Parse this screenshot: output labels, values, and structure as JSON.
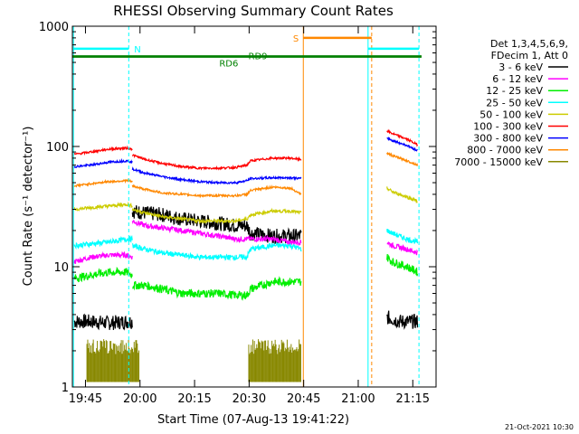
{
  "chart_data": {
    "type": "line",
    "title": "RHESSI Observing Summary Count Rates",
    "xlabel": "Start Time (07-Aug-13 19:41:22)",
    "ylabel": "Count Rate (s⁻¹ detector⁻¹)",
    "yscale": "log",
    "ylim": [
      1,
      1000
    ],
    "xlim_minutes": [
      0,
      100
    ],
    "x_unit": "minutes after 19:41:22",
    "x_tick_labels": [
      {
        "label": "19:45",
        "t": 3.6
      },
      {
        "label": "20:00",
        "t": 18.6
      },
      {
        "label": "20:15",
        "t": 33.6
      },
      {
        "label": "20:30",
        "t": 48.6
      },
      {
        "label": "20:45",
        "t": 63.6
      },
      {
        "label": "21:00",
        "t": 78.6
      },
      {
        "label": "21:15",
        "t": 93.6
      }
    ],
    "y_tick_labels": [
      {
        "label": "1",
        "v": 1
      },
      {
        "label": "10",
        "v": 10
      },
      {
        "label": "100",
        "v": 100
      },
      {
        "label": "1000",
        "v": 1000
      }
    ],
    "legend": {
      "position": "right",
      "header": [
        "Det 1,3,4,5,6,9,",
        "FDecim 1, Att 0"
      ],
      "entries": [
        {
          "label": "3 - 6 keV",
          "color": "#000000"
        },
        {
          "label": "6 - 12 keV",
          "color": "#ff00ff"
        },
        {
          "label": "12 - 25 keV",
          "color": "#00ee00"
        },
        {
          "label": "25 - 50 keV",
          "color": "#00ffff"
        },
        {
          "label": "50 - 100 keV",
          "color": "#cccc00"
        },
        {
          "label": "100 - 300 keV",
          "color": "#ff0000"
        },
        {
          "label": "300 - 800 keV",
          "color": "#0000ff"
        },
        {
          "label": "800 - 7000 keV",
          "color": "#ff8800"
        },
        {
          "label": "7000 - 15000 keV",
          "color": "#888800"
        }
      ]
    },
    "series": [
      {
        "name": "3 - 6 keV",
        "color": "#000000",
        "jitter": 0.14,
        "segments": [
          {
            "t": [
              0.5,
              5,
              10,
              15,
              16.5
            ],
            "v": [
              3.5,
              3.5,
              3.4,
              3.5,
              3.5
            ]
          },
          {
            "t": [
              16.5,
              20,
              25,
              30,
              35,
              40,
              45,
              48,
              49,
              55,
              60,
              63
            ],
            "v": [
              29,
              28,
              27,
              25,
              24,
              23,
              22,
              22,
              19,
              18,
              18,
              18
            ]
          },
          {
            "t": [
              86.5,
              90,
              95
            ],
            "v": [
              3.8,
              3.5,
              3.5
            ]
          }
        ]
      },
      {
        "name": "6 - 12 keV",
        "color": "#ff00ff",
        "jitter": 0.05,
        "segments": [
          {
            "t": [
              0.5,
              5,
              10,
              15,
              16.5
            ],
            "v": [
              11,
              12,
              12.5,
              12.5,
              12
            ]
          },
          {
            "t": [
              16.5,
              20,
              25,
              30,
              35,
              40,
              45,
              48,
              49,
              55,
              60,
              63
            ],
            "v": [
              24,
              22,
              21,
              20,
              19,
              18,
              17,
              17,
              17,
              17,
              16,
              16
            ]
          },
          {
            "t": [
              86.5,
              88,
              92,
              95
            ],
            "v": [
              16,
              15,
              14,
              13
            ]
          }
        ]
      },
      {
        "name": "12 - 25 keV",
        "color": "#00ee00",
        "jitter": 0.08,
        "segments": [
          {
            "t": [
              0.5,
              5,
              10,
              15,
              16.5
            ],
            "v": [
              8,
              8.5,
              9,
              9,
              8.5
            ]
          },
          {
            "t": [
              16.5,
              20,
              25,
              30,
              35,
              40,
              45,
              48,
              49,
              55,
              60,
              63
            ],
            "v": [
              7,
              7,
              6.5,
              6,
              6,
              6,
              5.8,
              5.8,
              6.5,
              7.5,
              7.5,
              7.5
            ]
          },
          {
            "t": [
              86.5,
              88,
              92,
              95
            ],
            "v": [
              12,
              11,
              10,
              9
            ]
          }
        ]
      },
      {
        "name": "25 - 50 keV",
        "color": "#00ffff",
        "jitter": 0.05,
        "segments": [
          {
            "t": [
              0.5,
              5,
              10,
              15,
              16.5
            ],
            "v": [
              15,
              15.5,
              16,
              17,
              17
            ]
          },
          {
            "t": [
              16.5,
              20,
              25,
              30,
              35,
              40,
              45,
              48,
              49,
              55,
              60,
              63
            ],
            "v": [
              15,
              14,
              13,
              12.5,
              12,
              12,
              12,
              12,
              14,
              15,
              15,
              14
            ]
          },
          {
            "t": [
              86.5,
              88,
              92,
              95
            ],
            "v": [
              20,
              19,
              17,
              16
            ]
          }
        ]
      },
      {
        "name": "50 - 100 keV",
        "color": "#cccc00",
        "jitter": 0.03,
        "segments": [
          {
            "t": [
              0.5,
              5,
              10,
              15,
              16.5
            ],
            "v": [
              30,
              31,
              32,
              33,
              32
            ]
          },
          {
            "t": [
              16.5,
              20,
              25,
              30,
              35,
              40,
              45,
              48,
              49,
              55,
              60,
              63
            ],
            "v": [
              30,
              28,
              26,
              25,
              24,
              24,
              24,
              25,
              27,
              29,
              29,
              28
            ]
          },
          {
            "t": [
              86.5,
              88,
              92,
              95
            ],
            "v": [
              45,
              42,
              38,
              35
            ]
          }
        ]
      },
      {
        "name": "100 - 300 keV",
        "color": "#ff0000",
        "jitter": 0.02,
        "segments": [
          {
            "t": [
              0.5,
              5,
              10,
              15,
              16.5
            ],
            "v": [
              86,
              90,
              95,
              97,
              95
            ]
          },
          {
            "t": [
              16.5,
              20,
              25,
              30,
              35,
              40,
              45,
              48,
              49,
              55,
              60,
              63
            ],
            "v": [
              85,
              78,
              72,
              68,
              66,
              66,
              67,
              70,
              76,
              80,
              80,
              78
            ]
          },
          {
            "t": [
              86.5,
              88,
              92,
              95
            ],
            "v": [
              135,
              128,
              115,
              103
            ]
          }
        ]
      },
      {
        "name": "300 - 800 keV",
        "color": "#0000ff",
        "jitter": 0.02,
        "segments": [
          {
            "t": [
              0.5,
              5,
              10,
              15,
              16.5
            ],
            "v": [
              68,
              70,
              74,
              76,
              74
            ]
          },
          {
            "t": [
              16.5,
              20,
              25,
              30,
              35,
              40,
              45,
              48,
              49,
              55,
              60,
              63
            ],
            "v": [
              65,
              60,
              56,
              53,
              51,
              50,
              50,
              52,
              54,
              55,
              55,
              54
            ]
          },
          {
            "t": [
              86.5,
              88,
              92,
              95
            ],
            "v": [
              118,
              112,
              102,
              92
            ]
          }
        ]
      },
      {
        "name": "800 - 7000 keV",
        "color": "#ff8800",
        "jitter": 0.02,
        "segments": [
          {
            "t": [
              0.5,
              5,
              10,
              15,
              16.5
            ],
            "v": [
              47,
              49,
              51,
              52,
              51
            ]
          },
          {
            "t": [
              16.5,
              20,
              25,
              30,
              35,
              40,
              45,
              48,
              49,
              55,
              60,
              63
            ],
            "v": [
              47,
              44,
              41,
              40,
              39,
              39,
              39,
              40,
              43,
              46,
              45,
              40
            ]
          },
          {
            "t": [
              86.5,
              88,
              92,
              95
            ],
            "v": [
              88,
              84,
              76,
              70
            ]
          }
        ]
      },
      {
        "name": "7000 - 15000 keV",
        "color": "#888800",
        "style": "bars",
        "segments": [
          {
            "t": [
              4,
              18.5
            ],
            "v": [
              1.1,
              2.5
            ]
          },
          {
            "t": [
              48.5,
              63
            ],
            "v": [
              1.1,
              2.5
            ]
          }
        ]
      }
    ],
    "annotations": [
      {
        "kind": "vline",
        "t": 0.3,
        "color": "#00ffff",
        "style": "solid"
      },
      {
        "kind": "vline",
        "t": 15.5,
        "color": "#00ffff",
        "style": "dashed"
      },
      {
        "kind": "vline",
        "t": 81.3,
        "color": "#00ffff",
        "style": "solid"
      },
      {
        "kind": "vline",
        "t": 95.3,
        "color": "#00ffff",
        "style": "dashed"
      },
      {
        "kind": "vline",
        "t": 63.5,
        "color": "#ff8800",
        "style": "solid"
      },
      {
        "kind": "vline",
        "t": 82.3,
        "color": "#ff8800",
        "style": "dashed"
      },
      {
        "kind": "hbar",
        "label": "N",
        "t0": 0.3,
        "t1": 15.5,
        "v": 650,
        "color": "#00ffff",
        "label_side": "right"
      },
      {
        "kind": "hbar",
        "label": "",
        "t0": 81.3,
        "t1": 95.3,
        "v": 650,
        "color": "#00ffff",
        "label_side": "none"
      },
      {
        "kind": "hbar",
        "label": "S",
        "t0": 63.5,
        "t1": 82.3,
        "v": 800,
        "color": "#ff8800",
        "label_side": "left"
      },
      {
        "kind": "hbar",
        "label": "RD6",
        "t0": 0,
        "t1": 96,
        "v": 560,
        "color": "#008000",
        "label_pos": "below",
        "label_t": 43
      },
      {
        "kind": "hbar",
        "label": "RD9",
        "t0": 0,
        "t1": 96,
        "v": 560,
        "color": "#008000",
        "label_pos": "above",
        "label_t": 51
      }
    ]
  },
  "footer": {
    "timestamp": "21-Oct-2021 10:30"
  }
}
